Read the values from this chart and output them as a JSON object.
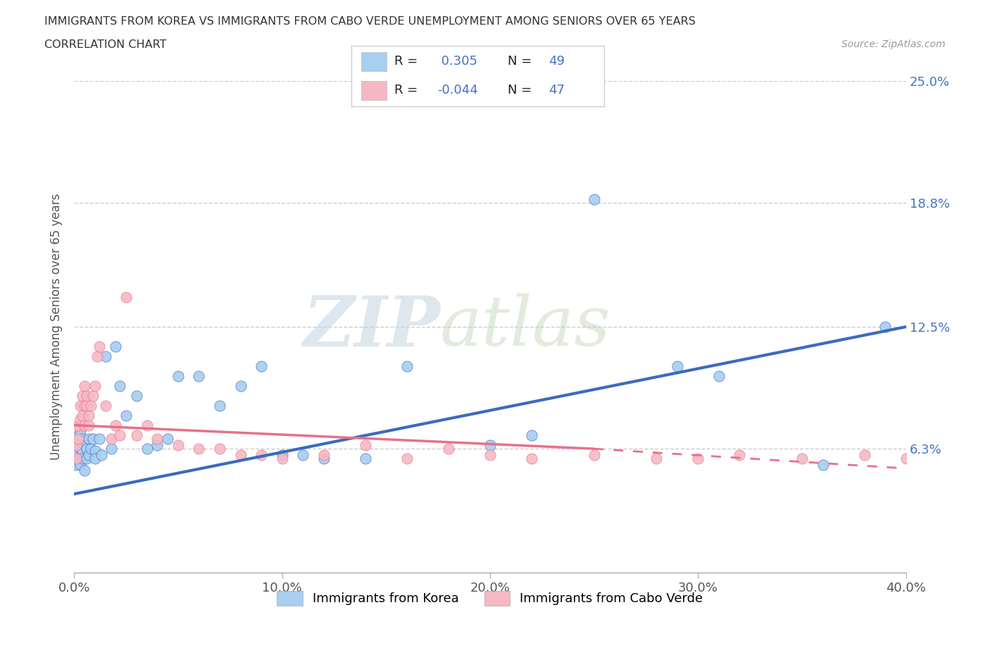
{
  "title_line1": "IMMIGRANTS FROM KOREA VS IMMIGRANTS FROM CABO VERDE UNEMPLOYMENT AMONG SENIORS OVER 65 YEARS",
  "title_line2": "CORRELATION CHART",
  "source": "Source: ZipAtlas.com",
  "ylabel": "Unemployment Among Seniors over 65 years",
  "xlim": [
    0.0,
    0.4
  ],
  "ylim": [
    0.0,
    0.25
  ],
  "xtick_labels": [
    "0.0%",
    "",
    "",
    "",
    "",
    "10.0%",
    "",
    "",
    "",
    "",
    "20.0%",
    "",
    "",
    "",
    "",
    "30.0%",
    "",
    "",
    "",
    "",
    "40.0%"
  ],
  "xtick_values": [
    0.0,
    0.02,
    0.04,
    0.06,
    0.08,
    0.1,
    0.12,
    0.14,
    0.16,
    0.18,
    0.2,
    0.22,
    0.24,
    0.26,
    0.28,
    0.3,
    0.32,
    0.34,
    0.36,
    0.38,
    0.4
  ],
  "xtick_major_labels": [
    "0.0%",
    "10.0%",
    "20.0%",
    "30.0%",
    "40.0%"
  ],
  "xtick_major_values": [
    0.0,
    0.1,
    0.2,
    0.3,
    0.4
  ],
  "ytick_labels": [
    "6.3%",
    "12.5%",
    "18.8%",
    "25.0%"
  ],
  "ytick_values": [
    0.063,
    0.125,
    0.188,
    0.25
  ],
  "korea_R": 0.305,
  "korea_N": 49,
  "caboverde_R": -0.044,
  "caboverde_N": 47,
  "korea_color": "#a8cef0",
  "caboverde_color": "#f5b8c4",
  "trendline_korea_color": "#3a6bbf",
  "trendline_caboverde_color": "#e8708a",
  "legend_label_korea": "Immigrants from Korea",
  "legend_label_caboverde": "Immigrants from Cabo Verde",
  "watermark_zip": "ZIP",
  "watermark_atlas": "atlas",
  "background_color": "#ffffff",
  "korea_x": [
    0.001,
    0.001,
    0.002,
    0.002,
    0.002,
    0.003,
    0.003,
    0.003,
    0.004,
    0.004,
    0.004,
    0.005,
    0.005,
    0.006,
    0.006,
    0.007,
    0.007,
    0.008,
    0.009,
    0.01,
    0.01,
    0.012,
    0.013,
    0.015,
    0.018,
    0.02,
    0.022,
    0.025,
    0.03,
    0.035,
    0.04,
    0.045,
    0.05,
    0.06,
    0.07,
    0.08,
    0.09,
    0.1,
    0.11,
    0.12,
    0.14,
    0.16,
    0.2,
    0.22,
    0.25,
    0.29,
    0.31,
    0.36,
    0.39
  ],
  "korea_y": [
    0.06,
    0.055,
    0.065,
    0.058,
    0.07,
    0.063,
    0.055,
    0.072,
    0.062,
    0.068,
    0.058,
    0.065,
    0.052,
    0.063,
    0.058,
    0.068,
    0.06,
    0.063,
    0.068,
    0.062,
    0.058,
    0.068,
    0.06,
    0.11,
    0.063,
    0.115,
    0.095,
    0.08,
    0.09,
    0.063,
    0.065,
    0.068,
    0.1,
    0.1,
    0.085,
    0.095,
    0.105,
    0.06,
    0.06,
    0.058,
    0.058,
    0.105,
    0.065,
    0.07,
    0.19,
    0.105,
    0.1,
    0.055,
    0.125
  ],
  "caboverde_x": [
    0.001,
    0.001,
    0.002,
    0.002,
    0.003,
    0.003,
    0.004,
    0.004,
    0.005,
    0.005,
    0.005,
    0.006,
    0.006,
    0.007,
    0.007,
    0.008,
    0.009,
    0.01,
    0.011,
    0.012,
    0.015,
    0.018,
    0.02,
    0.022,
    0.025,
    0.03,
    0.035,
    0.04,
    0.05,
    0.06,
    0.07,
    0.08,
    0.09,
    0.1,
    0.12,
    0.14,
    0.16,
    0.18,
    0.2,
    0.22,
    0.25,
    0.28,
    0.3,
    0.32,
    0.35,
    0.38,
    0.4
  ],
  "caboverde_y": [
    0.065,
    0.058,
    0.075,
    0.068,
    0.085,
    0.078,
    0.09,
    0.08,
    0.095,
    0.085,
    0.075,
    0.09,
    0.085,
    0.08,
    0.075,
    0.085,
    0.09,
    0.095,
    0.11,
    0.115,
    0.085,
    0.068,
    0.075,
    0.07,
    0.14,
    0.07,
    0.075,
    0.068,
    0.065,
    0.063,
    0.063,
    0.06,
    0.06,
    0.058,
    0.06,
    0.065,
    0.058,
    0.063,
    0.06,
    0.058,
    0.06,
    0.058,
    0.058,
    0.06,
    0.058,
    0.06,
    0.058
  ],
  "trendline_korea_x0": 0.0,
  "trendline_korea_y0": 0.04,
  "trendline_korea_x1": 0.4,
  "trendline_korea_y1": 0.125,
  "trendline_cv_solid_x0": 0.0,
  "trendline_cv_solid_y0": 0.075,
  "trendline_cv_solid_x1": 0.25,
  "trendline_cv_solid_y1": 0.063,
  "trendline_cv_dash_x0": 0.25,
  "trendline_cv_dash_y0": 0.063,
  "trendline_cv_dash_x1": 0.4,
  "trendline_cv_dash_y1": 0.053
}
